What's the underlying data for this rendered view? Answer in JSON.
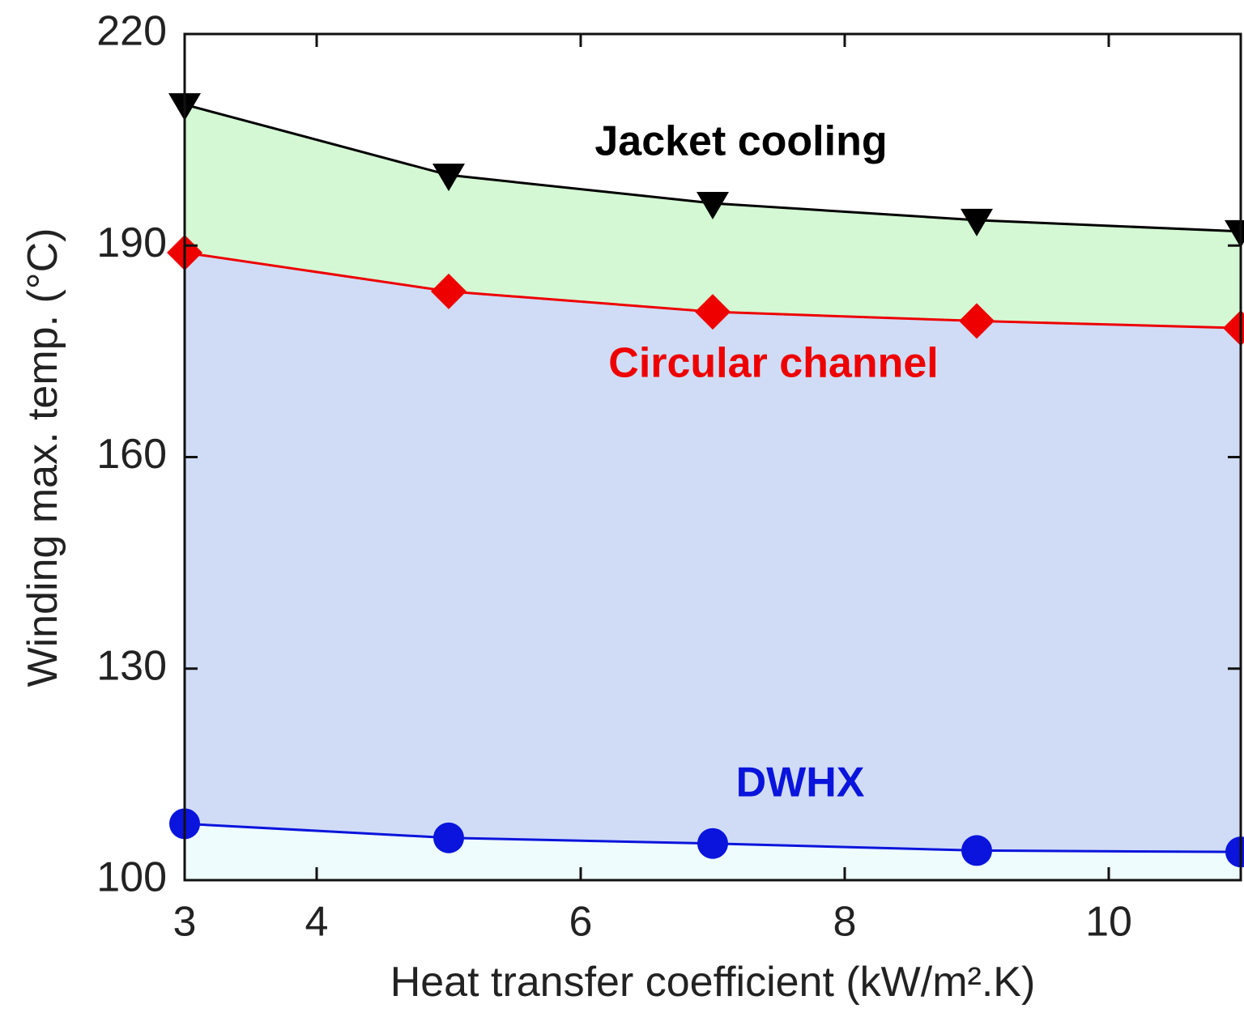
{
  "chart_data": {
    "type": "line",
    "x_label": "Heat transfer coefficient (kW/m².K)",
    "y_label": "Winding max. temp. (°C)",
    "x": [
      3,
      5,
      7,
      9,
      11
    ],
    "xlim": [
      3,
      11
    ],
    "xticks": [
      3,
      4,
      6,
      8,
      10
    ],
    "ylim": [
      100,
      220
    ],
    "yticks": [
      100,
      130,
      160,
      190,
      220
    ],
    "series": [
      {
        "name": "Jacket cooling",
        "color": "#000000",
        "fill": "#d4f8d4",
        "marker": "triangle-down",
        "values": [
          210,
          200,
          196,
          193.6,
          192
        ]
      },
      {
        "name": "Circular channel",
        "color": "#ee0000",
        "fill": "#d0dcf6",
        "marker": "diamond",
        "values": [
          189,
          183.5,
          180.6,
          179.3,
          178.3
        ]
      },
      {
        "name": "DWHX",
        "color": "#0a14dc",
        "fill": "#eefcfd",
        "marker": "circle",
        "values": [
          108,
          106,
          105.2,
          104.2,
          104
        ]
      }
    ]
  }
}
